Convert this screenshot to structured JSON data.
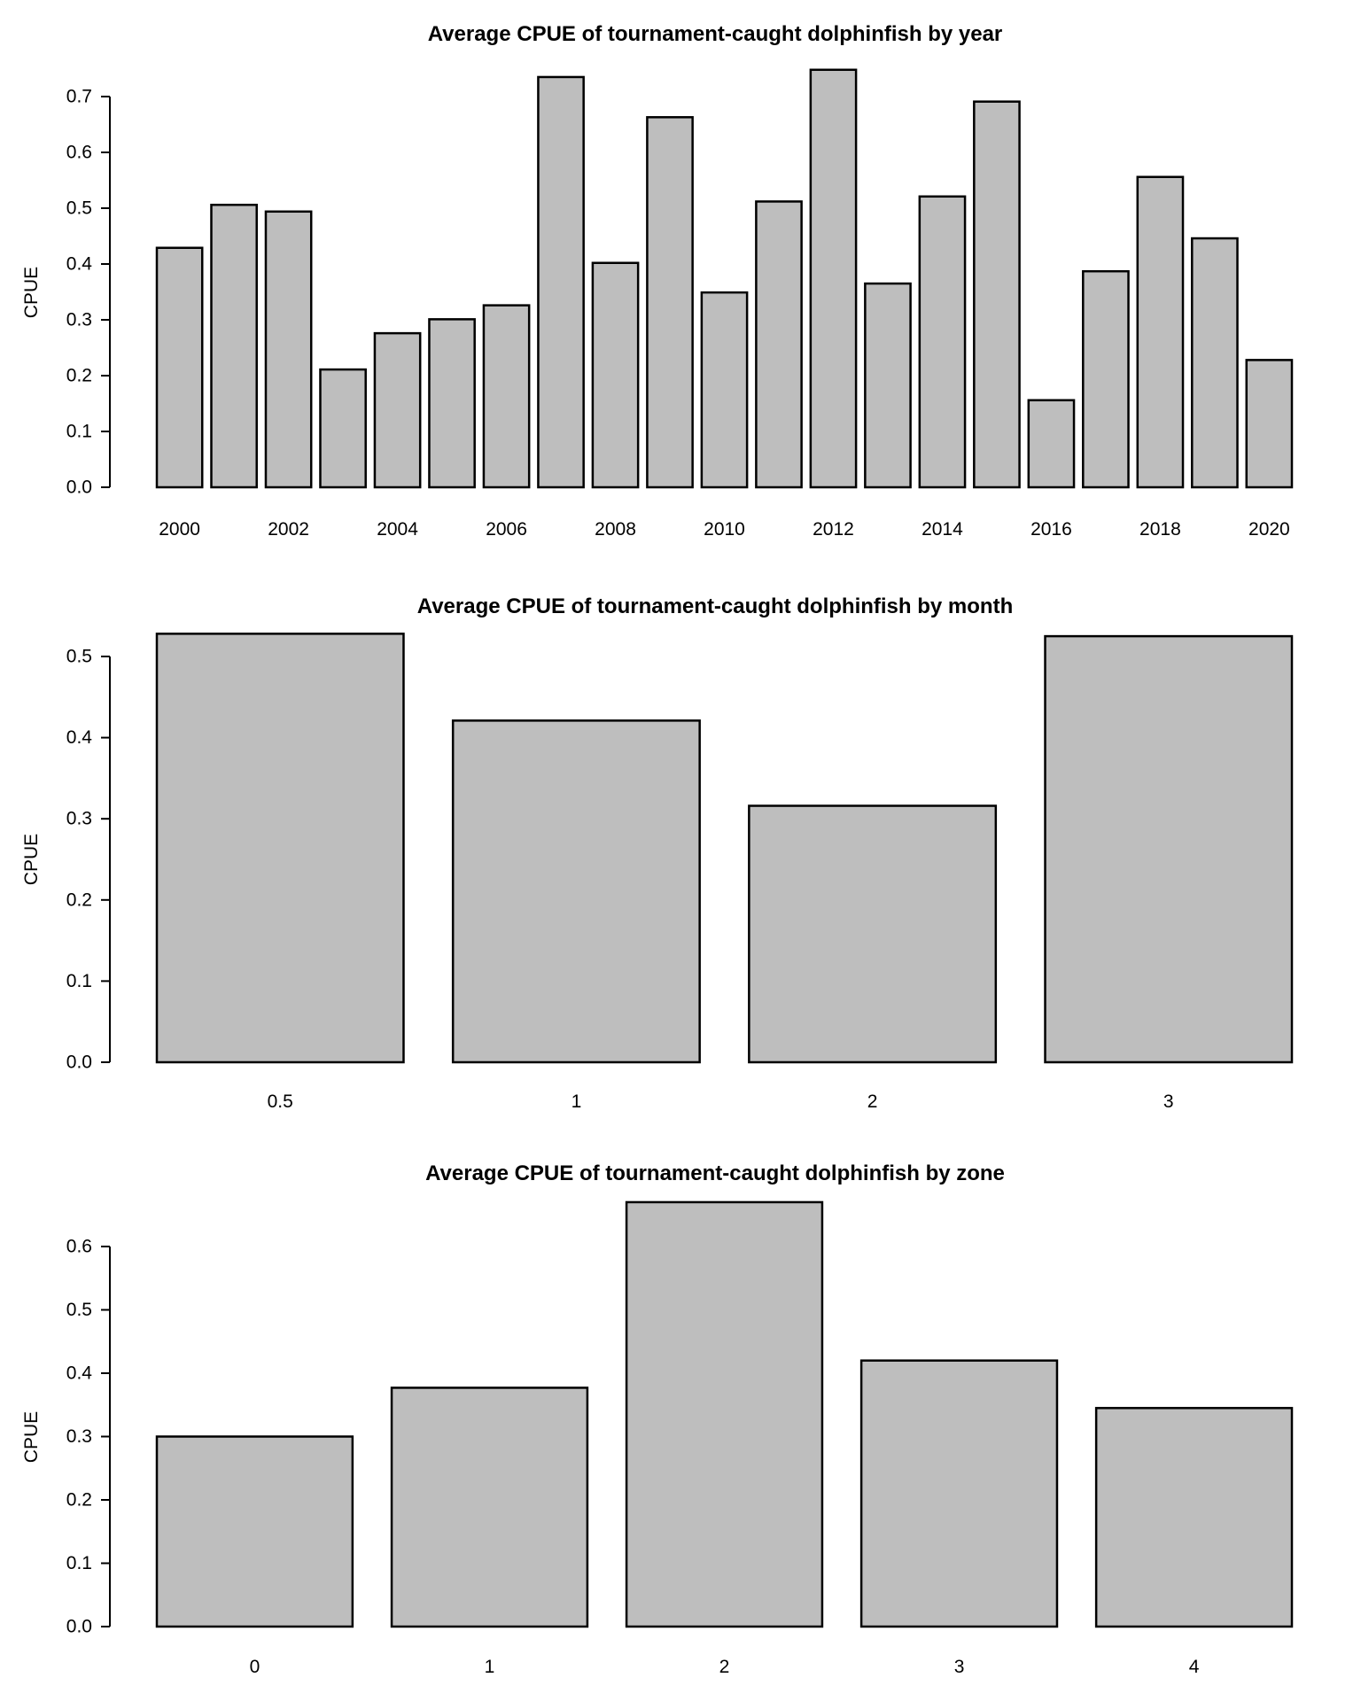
{
  "figure_background": "#ffffff",
  "chart_data": [
    {
      "type": "bar",
      "title": "Average CPUE of tournament-caught dolphinfish by year",
      "xlabel": "",
      "ylabel": "CPUE",
      "categories": [
        "2000",
        "2001",
        "2002",
        "2003",
        "2004",
        "2005",
        "2006",
        "2007",
        "2008",
        "2009",
        "2010",
        "2011",
        "2012",
        "2013",
        "2014",
        "2015",
        "2016",
        "2017",
        "2018",
        "2019",
        "2020"
      ],
      "values": [
        0.429,
        0.506,
        0.494,
        0.211,
        0.276,
        0.301,
        0.326,
        0.735,
        0.402,
        0.663,
        0.349,
        0.512,
        0.748,
        0.365,
        0.521,
        0.691,
        0.156,
        0.387,
        0.556,
        0.446,
        0.228
      ],
      "ylim": [
        0,
        0.7
      ],
      "yticks": [
        "0.0",
        "0.1",
        "0.2",
        "0.3",
        "0.4",
        "0.5",
        "0.6",
        "0.7"
      ],
      "xtick_label_every": 2,
      "grid": "off",
      "legend": "none",
      "bar_fill": "#bebebe",
      "bar_stroke": "#000000"
    },
    {
      "type": "bar",
      "title": "Average CPUE of tournament-caught dolphinfish by month",
      "xlabel": "",
      "ylabel": "CPUE",
      "categories": [
        "0.5",
        "1",
        "2",
        "3"
      ],
      "values": [
        0.528,
        0.421,
        0.316,
        0.525
      ],
      "ylim": [
        0,
        0.5
      ],
      "yticks": [
        "0.0",
        "0.1",
        "0.2",
        "0.3",
        "0.4",
        "0.5"
      ],
      "xtick_label_every": 1,
      "grid": "off",
      "legend": "none",
      "bar_fill": "#bebebe",
      "bar_stroke": "#000000"
    },
    {
      "type": "bar",
      "title": "Average CPUE of tournament-caught dolphinfish by zone",
      "xlabel": "",
      "ylabel": "CPUE",
      "categories": [
        "0",
        "1",
        "2",
        "3",
        "4"
      ],
      "values": [
        0.3,
        0.377,
        0.67,
        0.42,
        0.345
      ],
      "ylim": [
        0,
        0.6
      ],
      "yticks": [
        "0.0",
        "0.1",
        "0.2",
        "0.3",
        "0.4",
        "0.5",
        "0.6"
      ],
      "xtick_label_every": 1,
      "grid": "off",
      "legend": "none",
      "bar_fill": "#bebebe",
      "bar_stroke": "#000000"
    }
  ]
}
